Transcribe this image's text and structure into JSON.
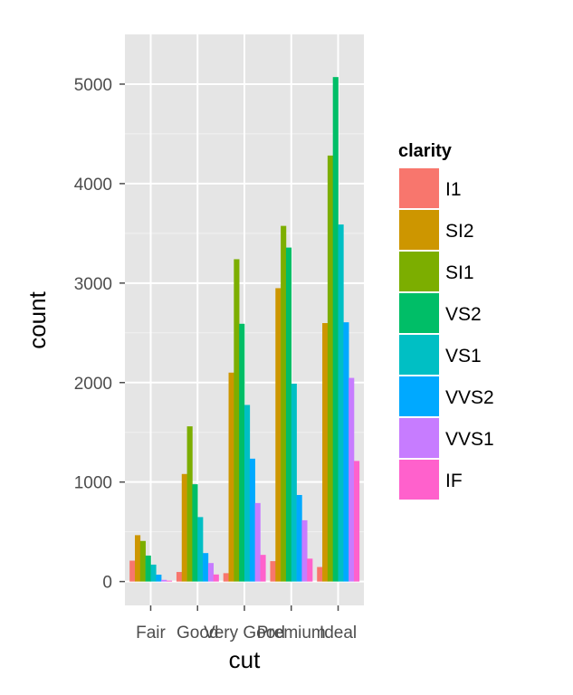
{
  "chart_data": {
    "type": "bar",
    "xlabel": "cut",
    "ylabel": "count",
    "categories": [
      "Fair",
      "Good",
      "Very Good",
      "Premium",
      "Ideal"
    ],
    "ylim": [
      -240,
      5500
    ],
    "yticks": [
      0,
      1000,
      2000,
      3000,
      4000,
      5000
    ],
    "grid": true,
    "legend_title": "clarity",
    "legend_position": "right",
    "series": [
      {
        "name": "I1",
        "color": "#F8766D",
        "values": [
          210,
          96,
          84,
          205,
          146
        ]
      },
      {
        "name": "SI2",
        "color": "#CD9600",
        "values": [
          466,
          1081,
          2100,
          2949,
          2598
        ]
      },
      {
        "name": "SI1",
        "color": "#7CAE00",
        "values": [
          408,
          1560,
          3240,
          3575,
          4282
        ]
      },
      {
        "name": "VS2",
        "color": "#00BE67",
        "values": [
          261,
          978,
          2591,
          3357,
          5071
        ]
      },
      {
        "name": "VS1",
        "color": "#00BFC4",
        "values": [
          170,
          648,
          1775,
          1989,
          3589
        ]
      },
      {
        "name": "VVS2",
        "color": "#00A9FF",
        "values": [
          69,
          286,
          1235,
          870,
          2606
        ]
      },
      {
        "name": "VVS1",
        "color": "#C77CFF",
        "values": [
          17,
          186,
          789,
          616,
          2047
        ]
      },
      {
        "name": "IF",
        "color": "#FF61CC",
        "values": [
          9,
          71,
          268,
          230,
          1212
        ]
      }
    ]
  }
}
